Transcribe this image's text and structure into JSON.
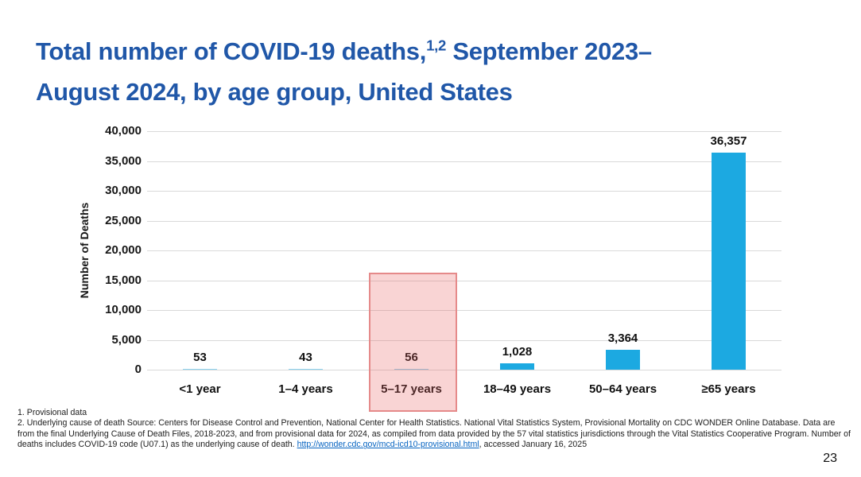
{
  "slide": {
    "title": {
      "part1": "Total number of COVID-19 deaths,",
      "superscript": "1,2",
      "part2": " September 2023–",
      "line2": "August 2024, by age group, United States",
      "color": "#2057A8"
    },
    "page_number": "23"
  },
  "chart_data": {
    "type": "bar",
    "title": "",
    "categories": [
      "<1 year",
      "1–4 years",
      "5–17 years",
      "18–49 years",
      "50–64 years",
      "≥65 years"
    ],
    "values": [
      53,
      43,
      56,
      1028,
      3364,
      36357
    ],
    "value_labels": [
      "53",
      "43",
      "56",
      "1,028",
      "3,364",
      "36,357"
    ],
    "xlabel": "",
    "ylabel": "Number of Deaths",
    "ylim": [
      0,
      40000
    ],
    "ytick_step": 5000,
    "ytick_labels": [
      "0",
      "5,000",
      "10,000",
      "15,000",
      "20,000",
      "25,000",
      "30,000",
      "35,000",
      "40,000"
    ],
    "grid": "horizontal",
    "legend": "none",
    "bar_color": "#1CA9E1",
    "gridline_color": "#D9D9D9",
    "highlight": {
      "category": "5–17 years",
      "covers_up_to_value": 16300,
      "fill_rgba": "rgba(233,97,97,0.27)",
      "border_color": "#E58A8A"
    }
  },
  "footnotes": {
    "line1": "1. Provisional data",
    "line2_before_link": "2. Underlying cause of death Source: Centers for Disease Control and Prevention, National Center for Health Statistics. National Vital Statistics System, Provisional Mortality on CDC WONDER Online Database. Data are from the final Underlying Cause of Death Files, 2018-2023, and from provisional data for 2024, as compiled from data provided by the 57 vital statistics jurisdictions through the Vital Statistics Cooperative Program. Number of deaths includes COVID-19 code (U07.1) as the underlying cause of death. ",
    "link_text": "http://wonder.cdc.gov/mcd-icd10-provisional.html",
    "line2_after_link": ", accessed January 16, 2025",
    "link_color": "#0563C1"
  }
}
